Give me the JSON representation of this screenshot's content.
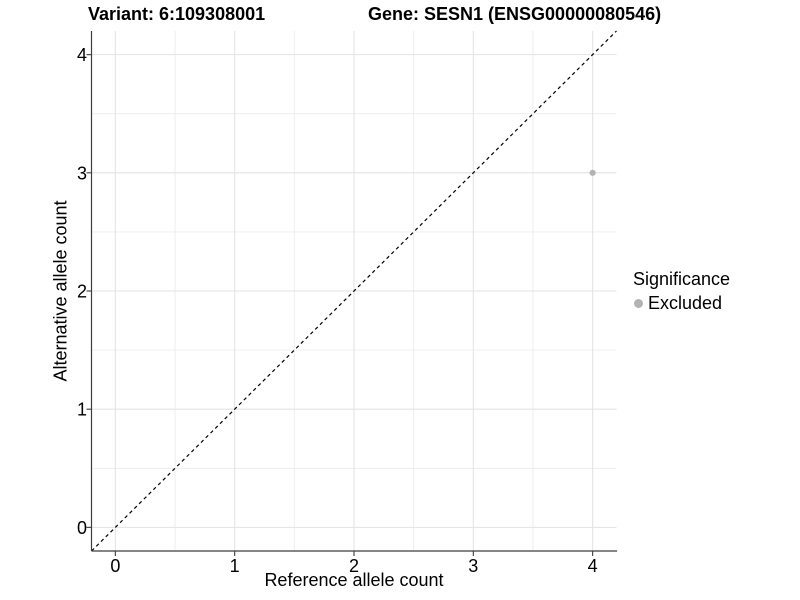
{
  "chart_data": {
    "type": "scatter",
    "titles": {
      "left": "Variant: 6:109308001",
      "right": "Gene: SESN1 (ENSG00000080546)"
    },
    "xlabel": "Reference allele count",
    "ylabel": "Alternative allele count",
    "xlim": [
      -0.2,
      4.2
    ],
    "ylim": [
      -0.2,
      4.2
    ],
    "x_ticks": [
      0,
      1,
      2,
      3,
      4
    ],
    "y_ticks": [
      0,
      1,
      2,
      3,
      4
    ],
    "minor_gridlines_x": [
      0.5,
      1.5,
      2.5,
      3.5
    ],
    "minor_gridlines_y": [
      0.5,
      1.5,
      2.5,
      3.5
    ],
    "grid": "major+minor",
    "identity_line": {
      "from": [
        -0.2,
        -0.2
      ],
      "to": [
        4.2,
        4.2
      ],
      "style": "dashed",
      "color": "#000000"
    },
    "series": [
      {
        "name": "Excluded",
        "color": "#b3b3b3",
        "points": [
          {
            "x": 4,
            "y": 3
          }
        ]
      }
    ],
    "legend": {
      "title": "Significance",
      "position": "right",
      "items": [
        {
          "label": "Excluded",
          "color": "#b3b3b3"
        }
      ]
    },
    "colors": {
      "background": "#ffffff",
      "grid_major": "#e3e3e3",
      "grid_minor": "#ececec",
      "axis": "#3c3c3c",
      "tick_text": "#000000"
    }
  }
}
